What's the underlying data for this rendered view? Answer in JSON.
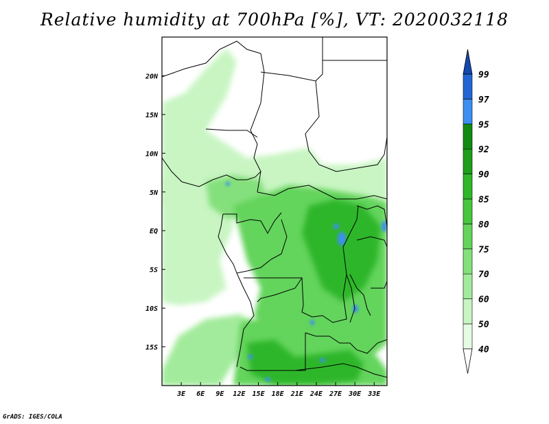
{
  "title": "Relative humidity at 700hPa [%], VT: 2020032118",
  "footer": "GrADS: IGES/COLA",
  "map": {
    "lon_range": [
      0,
      35
    ],
    "lat_range": [
      -20,
      25
    ],
    "lon_ticks": [
      {
        "value": 3,
        "label": "3E"
      },
      {
        "value": 6,
        "label": "6E"
      },
      {
        "value": 9,
        "label": "9E"
      },
      {
        "value": 12,
        "label": "12E"
      },
      {
        "value": 15,
        "label": "15E"
      },
      {
        "value": 18,
        "label": "18E"
      },
      {
        "value": 21,
        "label": "21E"
      },
      {
        "value": 24,
        "label": "24E"
      },
      {
        "value": 27,
        "label": "27E"
      },
      {
        "value": 30,
        "label": "30E"
      },
      {
        "value": 33,
        "label": "33E"
      }
    ],
    "lat_ticks": [
      {
        "value": 20,
        "label": "20N"
      },
      {
        "value": 15,
        "label": "15N"
      },
      {
        "value": 10,
        "label": "10N"
      },
      {
        "value": 5,
        "label": "5N"
      },
      {
        "value": 0,
        "label": "EQ"
      },
      {
        "value": -5,
        "label": "5S"
      },
      {
        "value": -10,
        "label": "10S"
      },
      {
        "value": -15,
        "label": "15S"
      }
    ]
  },
  "colorbar": {
    "levels": [
      "40",
      "50",
      "60",
      "70",
      "75",
      "80",
      "85",
      "90",
      "92",
      "95",
      "97",
      "99"
    ],
    "colors": [
      "#ffffff",
      "#e6fbe3",
      "#c8f5c2",
      "#a3eb9c",
      "#84e07b",
      "#64d45b",
      "#47c63e",
      "#2fb629",
      "#1f9e1b",
      "#128a12",
      "#3c8ff0",
      "#2266d6",
      "#1248b0"
    ]
  },
  "humidity_zones": [
    {
      "name": "sahel-band",
      "color": "#c8f5c2"
    },
    {
      "name": "west-coast",
      "color": "#c8f5c2"
    },
    {
      "name": "cameroon-moist",
      "color": "#84e07b"
    },
    {
      "name": "congo-basin",
      "color": "#64d45b"
    },
    {
      "name": "great-lakes-core",
      "color": "#2fb629"
    },
    {
      "name": "atlantic-plume",
      "color": "#a3eb9c"
    },
    {
      "name": "angola-zambia",
      "color": "#64d45b"
    },
    {
      "name": "south-core",
      "color": "#2fb629"
    },
    {
      "name": "very-high-spots",
      "color": "#3c8ff0"
    }
  ]
}
